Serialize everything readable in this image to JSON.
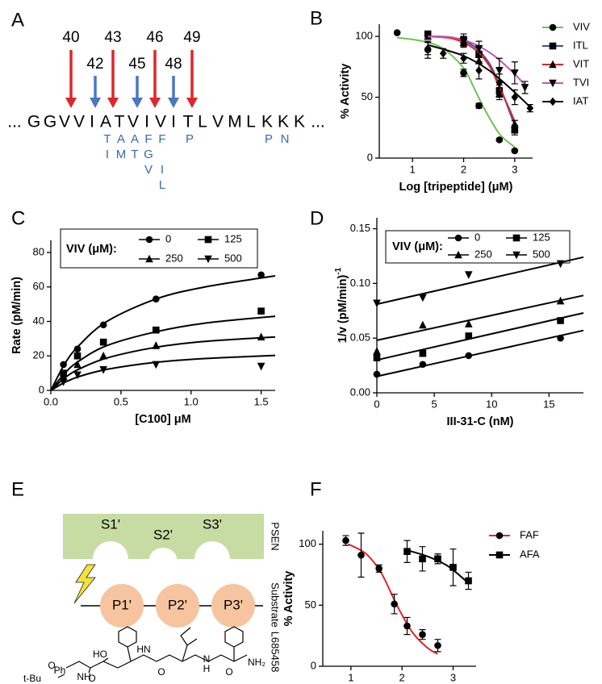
{
  "panel_labels": [
    "A",
    "B",
    "C",
    "D",
    "E",
    "F"
  ],
  "panel_a": {
    "cleavage_sites": [
      {
        "label": 40,
        "color": "#e0262a"
      },
      {
        "label": 42,
        "color": "#4a78c0"
      },
      {
        "label": 43,
        "color": "#e0262a"
      },
      {
        "label": 45,
        "color": "#4a78c0"
      },
      {
        "label": 46,
        "color": "#e0262a"
      },
      {
        "label": 48,
        "color": "#4a78c0"
      },
      {
        "label": 49,
        "color": "#e0262a"
      }
    ],
    "residues": [
      "...",
      "G",
      "G",
      "V",
      "V",
      "I",
      "A",
      "T",
      "V",
      "I",
      "V",
      "I",
      "T",
      "L",
      "V",
      "M",
      "L",
      "K",
      "K",
      "K",
      "..."
    ],
    "substitution_color": "#3b68b0",
    "substitutions": [
      [],
      [],
      [],
      [],
      [],
      [],
      [
        "T",
        "I"
      ],
      [
        "A",
        "M"
      ],
      [
        "A",
        "T"
      ],
      [
        "F",
        "G",
        "V"
      ],
      [
        "F",
        null,
        "I",
        "L"
      ],
      [],
      [
        "P"
      ],
      [],
      [],
      [],
      [],
      [
        "P"
      ],
      [
        "N"
      ],
      [],
      []
    ]
  },
  "panel_e": {
    "pockets": [
      "S1'",
      "S2'",
      "S3'"
    ],
    "enzyme": "PSEN",
    "residues": [
      "P1'",
      "P2'",
      "P3'"
    ],
    "substrate": "Substrate",
    "inhibitor": "L685458",
    "structure_labels": [
      "HO",
      "Ph",
      "NH",
      "O",
      "t-Bu",
      "O",
      "HN",
      "O",
      "N",
      "H",
      "O",
      "NH₂"
    ]
  },
  "chart_data": [
    {
      "type": "scatter",
      "x_label": "Log [tripeptide] (μM)",
      "y_label": "% Activity",
      "xlim": [
        0.35,
        3.35
      ],
      "ylim": [
        0,
        110
      ],
      "xticks": [
        1,
        2,
        3
      ],
      "yticks": [
        0,
        50,
        100
      ],
      "marker_color": "#000000",
      "legend": "right",
      "series": [
        {
          "name": "VIV",
          "color": "#73c054",
          "marker": "circle",
          "x": [
            0.7,
            1.3,
            2.0,
            2.3,
            2.7,
            3.0
          ],
          "values": [
            103,
            89,
            70,
            43,
            15,
            6
          ],
          "errors": [
            0,
            7,
            3,
            2,
            1,
            1
          ],
          "fit_x": [
            0.7,
            1.2,
            1.6,
            2.0,
            2.2,
            2.4,
            2.7,
            3.0
          ],
          "fit_y": [
            99,
            96,
            90,
            74,
            58,
            41,
            20,
            9
          ]
        },
        {
          "name": "ITL",
          "color": "#3a50a5",
          "marker": "square",
          "x": [
            1.3,
            2.0,
            2.3,
            2.7,
            3.0
          ],
          "values": [
            102,
            97,
            85,
            55,
            23
          ],
          "errors": [
            2,
            5,
            6,
            5,
            4
          ],
          "fit_x": [
            1.3,
            1.8,
            2.2,
            2.5,
            2.7,
            2.9,
            3.0
          ],
          "fit_y": [
            100,
            99,
            92,
            78,
            60,
            38,
            27
          ]
        },
        {
          "name": "VIT",
          "color": "#e0262a",
          "marker": "triangle",
          "x": [
            1.3,
            2.0,
            2.3,
            2.7,
            3.0
          ],
          "values": [
            100,
            95,
            80,
            53,
            28
          ],
          "errors": [
            2,
            4,
            8,
            5,
            3
          ],
          "fit_x": [
            1.3,
            1.8,
            2.2,
            2.5,
            2.7,
            2.9,
            3.0
          ],
          "fit_y": [
            100,
            98,
            90,
            76,
            58,
            40,
            30
          ]
        },
        {
          "name": "TVI",
          "color": "#c555b5",
          "marker": "triangle-down",
          "x": [
            2.0,
            2.3,
            2.7,
            3.0,
            3.2
          ],
          "values": [
            96,
            90,
            72,
            70,
            58
          ],
          "errors": [
            4,
            6,
            10,
            9,
            5
          ],
          "fit_x": [
            1.3,
            1.8,
            2.2,
            2.6,
            3.0,
            3.2
          ],
          "fit_y": [
            100,
            99,
            94,
            84,
            69,
            60
          ]
        },
        {
          "name": "IAT",
          "color": "#000000",
          "marker": "diamond",
          "x": [
            1.3,
            1.6,
            2.0,
            2.3,
            2.7,
            3.0,
            3.3
          ],
          "values": [
            90,
            86,
            82,
            72,
            62,
            50,
            41
          ],
          "errors": [
            5,
            4,
            4,
            7,
            7,
            6,
            3
          ],
          "fit_x": [
            1.3,
            2.0,
            2.5,
            3.0,
            3.3
          ],
          "fit_y": [
            93,
            84,
            72,
            54,
            42
          ]
        }
      ]
    },
    {
      "type": "scatter",
      "x_label": "[C100] μM",
      "y_label": "Rate (pM/min)",
      "xlim": [
        0,
        1.6
      ],
      "ylim": [
        0,
        87
      ],
      "xticks": [
        {
          "value": 0,
          "label": "0.0"
        },
        {
          "value": 0.5,
          "label": "0.5"
        },
        {
          "value": 1,
          "label": "1.0"
        },
        {
          "value": 1.5,
          "label": "1.5"
        }
      ],
      "yticks": [
        0,
        20,
        40,
        60,
        80
      ],
      "marker_color": "#000000",
      "legend": "box",
      "legend_title": "VIV (μM):",
      "series": [
        {
          "name": "0",
          "color": "#000000",
          "marker": "circle",
          "x": [
            0.09,
            0.19,
            0.375,
            0.75,
            1.5
          ],
          "values": [
            15,
            24,
            38,
            53,
            67
          ],
          "fit_x": [
            0,
            0.1,
            0.2,
            0.4,
            0.75,
            1.1,
            1.6
          ],
          "fit_y": [
            0,
            15.5,
            26,
            40,
            53,
            60,
            66.4
          ]
        },
        {
          "name": "125",
          "color": "#000000",
          "marker": "square",
          "x": [
            0.09,
            0.19,
            0.375,
            0.75,
            1.5
          ],
          "values": [
            10,
            20,
            28,
            35,
            46
          ],
          "fit_x": [
            0,
            0.1,
            0.2,
            0.4,
            0.75,
            1.1,
            1.6
          ],
          "fit_y": [
            0,
            10,
            17,
            26,
            34,
            39,
            43
          ]
        },
        {
          "name": "250",
          "color": "#000000",
          "marker": "triangle",
          "x": [
            0.09,
            0.19,
            0.375,
            0.75,
            1.5
          ],
          "values": [
            8,
            15,
            20,
            26,
            31
          ],
          "fit_x": [
            0,
            0.1,
            0.2,
            0.4,
            0.75,
            1.1,
            1.6
          ],
          "fit_y": [
            0,
            7.3,
            12.3,
            18.8,
            25,
            28.4,
            31
          ]
        },
        {
          "name": "500",
          "color": "#000000",
          "marker": "triangle-down",
          "x": [
            0.09,
            0.19,
            0.375,
            0.75,
            1.5
          ],
          "values": [
            5,
            9,
            12,
            15,
            14
          ],
          "fit_x": [
            0,
            0.1,
            0.2,
            0.4,
            0.75,
            1.1,
            1.6
          ],
          "fit_y": [
            0,
            4.7,
            8,
            12.2,
            16.3,
            18.5,
            20.3
          ]
        }
      ]
    },
    {
      "type": "scatter",
      "x_label": "III-31-C (nM)",
      "y_label": "1/v (pM/min)",
      "y_label_sup": "-1",
      "xlim": [
        0,
        18
      ],
      "ylim": [
        0,
        0.16
      ],
      "xticks": [
        0,
        5,
        10,
        15
      ],
      "yticks": [
        {
          "value": 0,
          "label": "0.00"
        },
        {
          "value": 0.05,
          "label": "0.05"
        },
        {
          "value": 0.1,
          "label": "0.10"
        },
        {
          "value": 0.15,
          "label": "0.15"
        }
      ],
      "marker_color": "#000000",
      "legend": "box",
      "legend_title": "VIV (μM):",
      "series": [
        {
          "name": "0",
          "color": "#000000",
          "marker": "circle",
          "x": [
            0,
            4,
            8,
            16
          ],
          "values": [
            0.017,
            0.026,
            0.034,
            0.05
          ],
          "fit_x": [
            0,
            18
          ],
          "fit_y": [
            0.015,
            0.057
          ]
        },
        {
          "name": "125",
          "color": "#000000",
          "marker": "square",
          "x": [
            0,
            4,
            8,
            16
          ],
          "values": [
            0.032,
            0.036,
            0.052,
            0.066
          ],
          "fit_x": [
            0,
            18
          ],
          "fit_y": [
            0.03,
            0.073
          ]
        },
        {
          "name": "250",
          "color": "#000000",
          "marker": "triangle",
          "x": [
            0,
            4,
            8,
            16
          ],
          "values": [
            0.038,
            0.062,
            0.063,
            0.084
          ],
          "fit_x": [
            0,
            18
          ],
          "fit_y": [
            0.048,
            0.089
          ]
        },
        {
          "name": "500",
          "color": "#000000",
          "marker": "triangle-down",
          "x": [
            0,
            4,
            8,
            16
          ],
          "values": [
            0.082,
            0.087,
            0.108,
            0.118
          ],
          "fit_x": [
            0,
            18
          ],
          "fit_y": [
            0.081,
            0.124
          ]
        }
      ]
    },
    {
      "type": "scatter",
      "x_label": "Log [tripeptide] (μM)",
      "y_label": "% Activity",
      "xlim": [
        0.45,
        3.45
      ],
      "ylim": [
        0,
        111
      ],
      "xticks": [
        1,
        2,
        3
      ],
      "yticks": [
        0,
        50,
        100
      ],
      "marker_color": "#000000",
      "legend": "right",
      "series": [
        {
          "name": "FAF",
          "color": "#e0262a",
          "marker": "circle",
          "x": [
            0.9,
            1.2,
            1.55,
            1.85,
            2.1,
            2.4,
            2.7
          ],
          "values": [
            103,
            91,
            80,
            51,
            33,
            26,
            17
          ],
          "errors": [
            4,
            18,
            3,
            8,
            7,
            4,
            5
          ],
          "fit_x": [
            0.95,
            1.3,
            1.6,
            1.9,
            2.2,
            2.5,
            2.7
          ],
          "fit_y": [
            100,
            92,
            76,
            50,
            28,
            15,
            10
          ]
        },
        {
          "name": "AFA",
          "color": "#000000",
          "marker": "square",
          "x": [
            2.1,
            2.4,
            2.7,
            3.0,
            3.3
          ],
          "values": [
            94,
            88,
            88,
            81,
            70
          ],
          "errors": [
            9,
            10,
            4,
            15,
            7
          ],
          "fit_x": [
            2.1,
            2.5,
            2.9,
            3.3
          ],
          "fit_y": [
            95,
            90,
            82,
            68
          ]
        }
      ]
    }
  ]
}
